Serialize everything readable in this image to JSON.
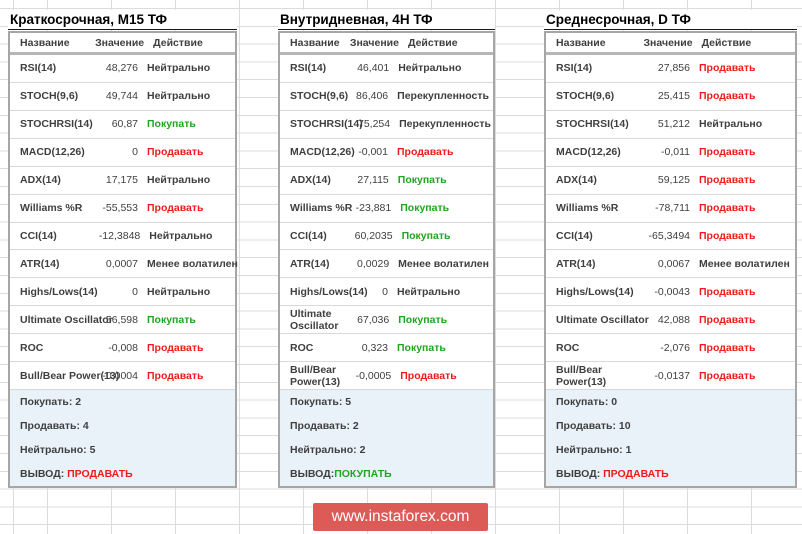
{
  "colors": {
    "buy": "#1fa51f",
    "sell": "#ee1b1b",
    "neutral": "#3f3f3f",
    "summary_background": "#eaf2f9",
    "banner_background": "#dc5b57",
    "table_border": "#a6a6a6"
  },
  "watermark": {
    "text": "www.instaforex.com"
  },
  "tables": [
    {
      "title": "Краткосрочная, М15 ТФ",
      "headers": {
        "name": "Название",
        "value": "Значение",
        "action": "Действие"
      },
      "rows": [
        {
          "name": "RSI(14)",
          "value": "48,276",
          "action": "Нейтрально",
          "action_type": "neutral"
        },
        {
          "name": "STOCH(9,6)",
          "value": "49,744",
          "action": "Нейтрально",
          "action_type": "neutral"
        },
        {
          "name": "STOCHRSI(14)",
          "value": "60,87",
          "action": "Покупать",
          "action_type": "buy"
        },
        {
          "name": "MACD(12,26)",
          "value": "0",
          "action": "Продавать",
          "action_type": "sell"
        },
        {
          "name": "ADX(14)",
          "value": "17,175",
          "action": "Нейтрально",
          "action_type": "neutral"
        },
        {
          "name": "Williams %R",
          "value": "-55,553",
          "action": "Продавать",
          "action_type": "sell"
        },
        {
          "name": "CCI(14)",
          "value": "-12,3848",
          "action": "Нейтрально",
          "action_type": "neutral"
        },
        {
          "name": "ATR(14)",
          "value": "0,0007",
          "action": "Менее волатилен",
          "action_type": "neutral"
        },
        {
          "name": "Highs/Lows(14)",
          "value": "0",
          "action": "Нейтрально",
          "action_type": "neutral"
        },
        {
          "name": "Ultimate Oscillator",
          "value": "56,598",
          "action": "Покупать",
          "action_type": "buy"
        },
        {
          "name": "ROC",
          "value": "-0,008",
          "action": "Продавать",
          "action_type": "sell"
        },
        {
          "name": "Bull/Bear Power(13)",
          "value": "-0,0004",
          "action": "Продавать",
          "action_type": "sell"
        }
      ],
      "summary": [
        "Покупать: 2",
        "Продавать: 4",
        "Нейтрально: 5"
      ],
      "conclusion_label": "ВЫВОД: ",
      "conclusion": "ПРОДАВАТЬ",
      "conclusion_type": "sell"
    },
    {
      "title": "Внутридневная, 4H ТФ",
      "headers": {
        "name": "Название",
        "value": "Значение",
        "action": "Действие"
      },
      "rows": [
        {
          "name": "RSI(14)",
          "value": "46,401",
          "action": "Нейтрально",
          "action_type": "neutral"
        },
        {
          "name": "STOCH(9,6)",
          "value": "86,406",
          "action": "Перекупленность",
          "action_type": "neutral"
        },
        {
          "name": "STOCHRSI(14)",
          "value": "75,254",
          "action": "Перекупленность",
          "action_type": "neutral"
        },
        {
          "name": "MACD(12,26)",
          "value": "-0,001",
          "action": "Продавать",
          "action_type": "sell"
        },
        {
          "name": "ADX(14)",
          "value": "27,115",
          "action": "Покупать",
          "action_type": "buy"
        },
        {
          "name": "Williams %R",
          "value": "-23,881",
          "action": "Покупать",
          "action_type": "buy"
        },
        {
          "name": "CCI(14)",
          "value": "60,2035",
          "action": "Покупать",
          "action_type": "buy"
        },
        {
          "name": "ATR(14)",
          "value": "0,0029",
          "action": "Менее волатилен",
          "action_type": "neutral"
        },
        {
          "name": "Highs/Lows(14)",
          "value": "0",
          "action": "Нейтрально",
          "action_type": "neutral"
        },
        {
          "name": "Ultimate\nOscillator",
          "value": "67,036",
          "action": "Покупать",
          "action_type": "buy"
        },
        {
          "name": "ROC",
          "value": "0,323",
          "action": "Покупать",
          "action_type": "buy"
        },
        {
          "name": "Bull/Bear\nPower(13)",
          "value": "-0,0005",
          "action": "Продавать",
          "action_type": "sell"
        }
      ],
      "summary": [
        "Покупать: 5",
        "Продавать: 2",
        "Нейтрально: 2"
      ],
      "conclusion_label": "ВЫВОД:",
      "conclusion": "ПОКУПАТЬ",
      "conclusion_type": "buy"
    },
    {
      "title": "Среднесрочная, D ТФ",
      "headers": {
        "name": "Название",
        "value": "Значение",
        "action": "Действие"
      },
      "rows": [
        {
          "name": "RSI(14)",
          "value": "27,856",
          "action": "Продавать",
          "action_type": "sell"
        },
        {
          "name": "STOCH(9,6)",
          "value": "25,415",
          "action": "Продавать",
          "action_type": "sell"
        },
        {
          "name": "STOCHRSI(14)",
          "value": "51,212",
          "action": "Нейтрально",
          "action_type": "neutral"
        },
        {
          "name": "MACD(12,26)",
          "value": "-0,011",
          "action": "Продавать",
          "action_type": "sell"
        },
        {
          "name": "ADX(14)",
          "value": "59,125",
          "action": "Продавать",
          "action_type": "sell"
        },
        {
          "name": "Williams %R",
          "value": "-78,711",
          "action": "Продавать",
          "action_type": "sell"
        },
        {
          "name": "CCI(14)",
          "value": "-65,3494",
          "action": "Продавать",
          "action_type": "sell"
        },
        {
          "name": "ATR(14)",
          "value": "0,0067",
          "action": "Менее волатилен",
          "action_type": "neutral"
        },
        {
          "name": "Highs/Lows(14)",
          "value": "-0,0043",
          "action": "Продавать",
          "action_type": "sell"
        },
        {
          "name": "Ultimate Oscillator",
          "value": "42,088",
          "action": "Продавать",
          "action_type": "sell"
        },
        {
          "name": "ROC",
          "value": "-2,076",
          "action": "Продавать",
          "action_type": "sell"
        },
        {
          "name": "Bull/Bear\nPower(13)",
          "value": "-0,0137",
          "action": "Продавать",
          "action_type": "sell"
        }
      ],
      "summary": [
        "Покупать: 0",
        "Продавать: 10",
        "Нейтрально: 1"
      ],
      "conclusion_label": "ВЫВОД: ",
      "conclusion": "ПРОДАВАТЬ",
      "conclusion_type": "sell"
    }
  ]
}
